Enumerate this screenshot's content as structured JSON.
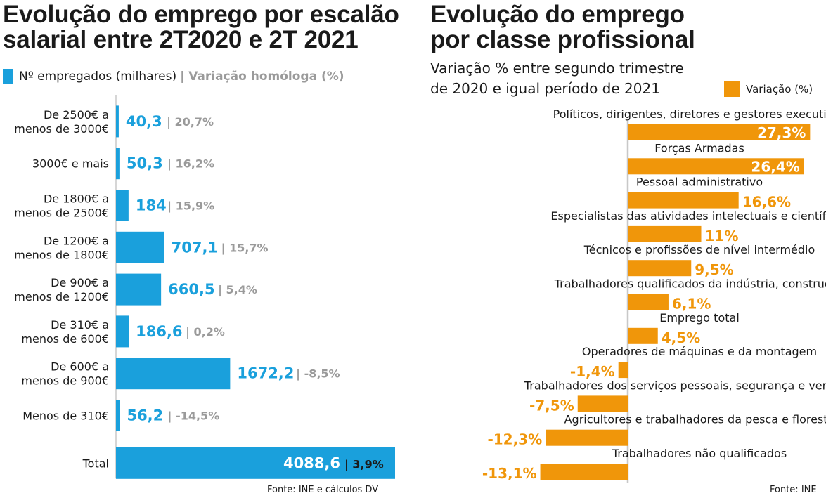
{
  "colors": {
    "blue": "#1aa0dc",
    "gray": "#9a9a9a",
    "orange": "#f0960a",
    "dark": "#1a1a1a",
    "axis": "#c8c8c8"
  },
  "left": {
    "title_line1": "Evolução do emprego por escalão",
    "title_line2": "salarial entre 2T2020 e 2T 2021",
    "legend_main": "Nº empregados (milhares)",
    "legend_secondary": "| Variação homóloga (%)",
    "source": "Fonte: INE e cálculos DV"
  },
  "right": {
    "title_line1": "Evolução do emprego",
    "title_line2": "por classe profissional",
    "subtitle_line1": "Variação % entre segundo trimestre",
    "subtitle_line2": "de 2020 e igual período de 2021",
    "legend": "Variação (%)",
    "source": "Fonte: INE"
  },
  "chart_data": [
    {
      "type": "bar",
      "orientation": "horizontal",
      "title": "Evolução do emprego por escalão salarial entre 2T2020 e 2T 2021",
      "legend": [
        "Nº empregados (milhares)",
        "Variação homóloga (%)"
      ],
      "categories": [
        [
          "De 2500€ a",
          "menos de 3000€"
        ],
        [
          "3000€ e mais"
        ],
        [
          "De 1800€ a",
          "menos de 2500€"
        ],
        [
          "De 1200€ a",
          "menos de 1800€"
        ],
        [
          "De 900€ a",
          "menos de 1200€"
        ],
        [
          "De 310€ a",
          "menos de 600€"
        ],
        [
          "De 600€ a",
          "menos de 900€"
        ],
        [
          "Menos de 310€"
        ],
        [
          "Total"
        ]
      ],
      "values": [
        40.3,
        50.3,
        184,
        707.1,
        660.5,
        186.6,
        1672.2,
        56.2,
        4088.6
      ],
      "value_labels": [
        "40,3",
        "50,3",
        "184",
        "707,1",
        "660,5",
        "186,6",
        "1672,2",
        "56,2",
        "4088,6"
      ],
      "variation_labels": [
        "| 20,7%",
        "| 16,2%",
        "| 15,9%",
        "| 15,7%",
        "| 5,4%",
        "| 0,2%",
        "| -8,5%",
        "| -14,5%",
        "| 3,9%"
      ],
      "xlim": [
        0,
        4088.6
      ],
      "source": "Fonte: INE e cálculos DV"
    },
    {
      "type": "bar",
      "orientation": "horizontal",
      "title": "Evolução do emprego por classe profissional",
      "subtitle": "Variação % entre segundo trimestre de 2020 e igual período de 2021",
      "legend": [
        "Variação (%)"
      ],
      "categories": [
        "Políticos, dirigentes, diretores e gestores executivos",
        "Forças Armadas",
        "Pessoal administrativo",
        "Especialistas das atividades intelectuais e científicas",
        "Técnicos e profissões de nível intermédio",
        "Trabalhadores qualificados da indústria, construção",
        "Emprego total",
        "Operadores de máquinas e da montagem",
        "Trabalhadores dos serviços pessoais, segurança e vendedores",
        "Agricultores e trabalhadores da pesca e floresta",
        "Trabalhadores não qualificados"
      ],
      "values": [
        27.3,
        26.4,
        16.6,
        11,
        9.5,
        6.1,
        4.5,
        -1.4,
        -7.5,
        -12.3,
        -13.1
      ],
      "value_labels": [
        "27,3%",
        "26,4%",
        "16,6%",
        "11%",
        "9,5%",
        "6,1%",
        "4,5%",
        "-1,4%",
        "-7,5%",
        "-12,3%",
        "-13,1%"
      ],
      "source": "Fonte: INE"
    }
  ]
}
